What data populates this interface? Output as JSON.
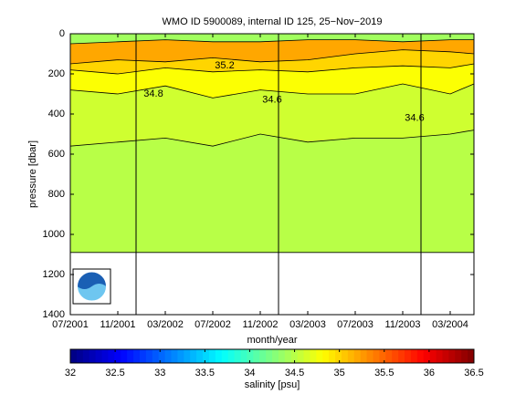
{
  "chart_data": {
    "type": "contour",
    "title": "WMO ID 5900089, internal ID 125, 25−Nov−2019",
    "x_label": "month/year",
    "y_label": "pressure [dbar]",
    "x": [
      "2001-07",
      "2001-11",
      "2002-03",
      "2002-07",
      "2002-11",
      "2003-03",
      "2003-07",
      "2003-11",
      "2004-03",
      "2004-05"
    ],
    "xlim": [
      "2001-07",
      "2004-05"
    ],
    "xticks": [
      {
        "value": "2001-07",
        "label": "07/2001"
      },
      {
        "value": "2001-11",
        "label": "11/2001"
      },
      {
        "value": "2002-03",
        "label": "03/2002"
      },
      {
        "value": "2002-07",
        "label": "07/2002"
      },
      {
        "value": "2002-11",
        "label": "11/2002"
      },
      {
        "value": "2003-03",
        "label": "03/2003"
      },
      {
        "value": "2003-07",
        "label": "07/2003"
      },
      {
        "value": "2003-11",
        "label": "11/2003"
      },
      {
        "value": "2004-03",
        "label": "03/2004"
      }
    ],
    "ylim": [
      0,
      1400
    ],
    "yticks": [
      0,
      200,
      400,
      600,
      800,
      1000,
      1200,
      1400
    ],
    "y_reversed": true,
    "layers": [
      {
        "value": 34.5,
        "depths": [
          1090,
          1090,
          1090,
          1090,
          1090,
          1090,
          1090,
          1090,
          1090,
          1090
        ]
      },
      {
        "value": 34.6,
        "depths": [
          560,
          540,
          520,
          560,
          500,
          540,
          520,
          520,
          500,
          480
        ]
      },
      {
        "value": 34.8,
        "depths": [
          280,
          300,
          260,
          320,
          280,
          300,
          300,
          250,
          300,
          250
        ]
      },
      {
        "value": 35,
        "depths": [
          180,
          200,
          170,
          190,
          180,
          190,
          170,
          160,
          170,
          150
        ]
      },
      {
        "value": 35.2,
        "depths": [
          150,
          130,
          140,
          120,
          140,
          130,
          100,
          80,
          90,
          100
        ]
      },
      {
        "value": 34.4,
        "depths": [
          50,
          40,
          30,
          40,
          40,
          30,
          30,
          40,
          30,
          30
        ]
      }
    ],
    "contour_labels": [
      {
        "x": "2003-12",
        "p": 420,
        "value": 34.6
      },
      {
        "x": "2002-12",
        "p": 330,
        "value": 34.6
      },
      {
        "x": "2002-02",
        "p": 300,
        "value": 34.8
      },
      {
        "x": "2002-08",
        "p": 160,
        "value": 35.2
      }
    ],
    "colorbar": {
      "label": "salinity [psu]",
      "lim": [
        32,
        36.5
      ],
      "ticks": [
        32,
        32.5,
        33,
        33.5,
        34,
        34.5,
        35,
        35.5,
        36,
        36.5
      ]
    }
  }
}
